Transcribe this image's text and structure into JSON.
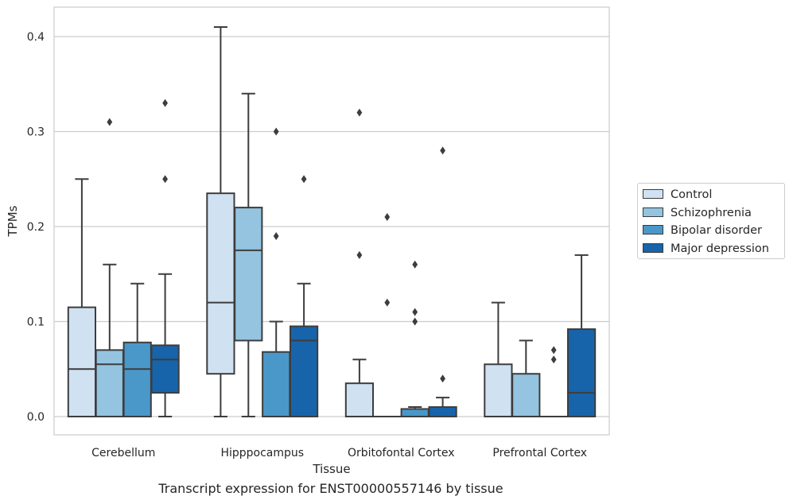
{
  "caption": "Transcript expression for ENST00000557146 by tissue",
  "chart_data": {
    "type": "box",
    "title": "",
    "xlabel": "Tissue",
    "ylabel": "TPMs",
    "ylim": [
      -0.02,
      0.43
    ],
    "yticks": [
      0.0,
      0.1,
      0.2,
      0.3,
      0.4
    ],
    "ytick_labels": [
      "0.0",
      "0.1",
      "0.2",
      "0.3",
      "0.4"
    ],
    "grid": "horizontal",
    "legend_position": "right",
    "categories": [
      "Cerebellum",
      "Hipppocampus",
      "Orbitofontal Cortex",
      "Prefrontal Cortex"
    ],
    "series": [
      {
        "name": "Control",
        "color": "#d0e1f2",
        "boxes": [
          {
            "whislo": 0.0,
            "q1": 0.0,
            "med": 0.05,
            "q3": 0.115,
            "whishi": 0.25,
            "fliers": []
          },
          {
            "whislo": 0.0,
            "q1": 0.045,
            "med": 0.12,
            "q3": 0.235,
            "whishi": 0.41,
            "fliers": []
          },
          {
            "whislo": 0.0,
            "q1": 0.0,
            "med": 0.0,
            "q3": 0.035,
            "whishi": 0.06,
            "fliers": [
              0.17,
              0.32
            ]
          },
          {
            "whislo": 0.0,
            "q1": 0.0,
            "med": 0.0,
            "q3": 0.055,
            "whishi": 0.12,
            "fliers": []
          }
        ]
      },
      {
        "name": "Schizophrenia",
        "color": "#94c4df",
        "boxes": [
          {
            "whislo": 0.0,
            "q1": 0.0,
            "med": 0.055,
            "q3": 0.07,
            "whishi": 0.16,
            "fliers": [
              0.31
            ]
          },
          {
            "whislo": 0.0,
            "q1": 0.08,
            "med": 0.175,
            "q3": 0.22,
            "whishi": 0.34,
            "fliers": []
          },
          {
            "whislo": 0.0,
            "q1": 0.0,
            "med": 0.0,
            "q3": 0.0,
            "whishi": 0.0,
            "fliers": [
              0.12,
              0.21
            ]
          },
          {
            "whislo": 0.0,
            "q1": 0.0,
            "med": 0.0,
            "q3": 0.045,
            "whishi": 0.08,
            "fliers": []
          }
        ]
      },
      {
        "name": "Bipolar disorder",
        "color": "#4a98c9",
        "boxes": [
          {
            "whislo": 0.0,
            "q1": 0.0,
            "med": 0.05,
            "q3": 0.078,
            "whishi": 0.14,
            "fliers": []
          },
          {
            "whislo": 0.0,
            "q1": 0.0,
            "med": 0.0,
            "q3": 0.068,
            "whishi": 0.1,
            "fliers": [
              0.19,
              0.3
            ]
          },
          {
            "whislo": 0.0,
            "q1": 0.0,
            "med": 0.0,
            "q3": 0.008,
            "whishi": 0.01,
            "fliers": [
              0.1,
              0.11,
              0.16
            ]
          },
          {
            "whislo": 0.0,
            "q1": 0.0,
            "med": 0.0,
            "q3": 0.0,
            "whishi": 0.0,
            "fliers": [
              0.06,
              0.07
            ]
          }
        ]
      },
      {
        "name": "Major depression",
        "color": "#1764ab",
        "boxes": [
          {
            "whislo": 0.0,
            "q1": 0.025,
            "med": 0.06,
            "q3": 0.075,
            "whishi": 0.15,
            "fliers": [
              0.25,
              0.33
            ]
          },
          {
            "whislo": 0.0,
            "q1": 0.0,
            "med": 0.08,
            "q3": 0.095,
            "whishi": 0.14,
            "fliers": [
              0.25
            ]
          },
          {
            "whislo": 0.0,
            "q1": 0.0,
            "med": 0.0,
            "q3": 0.01,
            "whishi": 0.02,
            "fliers": [
              0.04,
              0.28
            ]
          },
          {
            "whislo": 0.0,
            "q1": 0.0,
            "med": 0.025,
            "q3": 0.092,
            "whishi": 0.17,
            "fliers": []
          }
        ]
      }
    ]
  }
}
